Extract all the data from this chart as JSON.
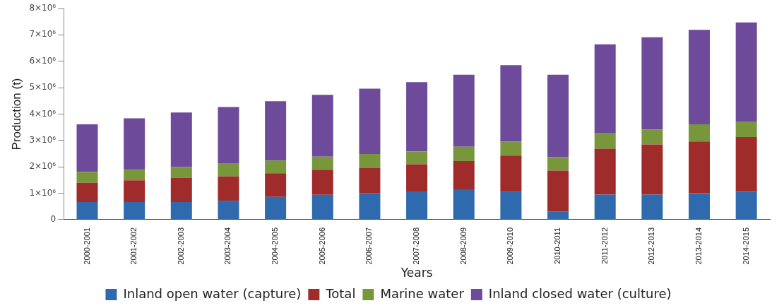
{
  "chart_data": {
    "type": "bar",
    "stacked": true,
    "xlabel": "Years",
    "ylabel": "Production (t)",
    "legend": "bottom",
    "categories": [
      "2000-2001",
      "2001-2002",
      "2002-2003",
      "2003-2004",
      "2004-2005",
      "2005-2006",
      "2006-2007",
      "2007-2008",
      "2008-2009",
      "2009-2010",
      "2010-2011",
      "2011-2012",
      "2012-2013",
      "2013-2014",
      "2014-2015"
    ],
    "ylim": [
      0,
      8000000
    ],
    "yticks": [
      0,
      {
        "value": 1000000,
        "label": "1×10⁶"
      },
      {
        "value": 2000000,
        "label": "2×10⁶"
      },
      {
        "value": 3000000,
        "label": "3×10⁶"
      },
      {
        "value": 4000000,
        "label": "4×10⁶"
      },
      {
        "value": 5000000,
        "label": "5×10⁶"
      },
      {
        "value": 6000000,
        "label": "6×10⁶"
      },
      {
        "value": 7000000,
        "label": "7×10⁶"
      },
      {
        "value": 8000000,
        "label": "8×10⁶"
      }
    ],
    "series": [
      {
        "name": "Inland open water (capture)",
        "color": "#2e6aad",
        "values": [
          670000,
          670000,
          670000,
          720000,
          860000,
          940000,
          1010000,
          1070000,
          1150000,
          1050000,
          300000,
          950000,
          950000,
          1000000,
          1060000
        ]
      },
      {
        "name": "Total",
        "color": "#a02b2b",
        "values": [
          730000,
          820000,
          920000,
          920000,
          900000,
          950000,
          940000,
          1030000,
          1070000,
          1380000,
          1560000,
          1740000,
          1900000,
          1960000,
          2070000
        ]
      },
      {
        "name": "Marine water",
        "color": "#77973a",
        "values": [
          410000,
          400000,
          410000,
          480000,
          480000,
          500000,
          540000,
          490000,
          540000,
          530000,
          510000,
          600000,
          560000,
          650000,
          570000
        ]
      },
      {
        "name": "Inland closed water (culture)",
        "color": "#6d4b9a",
        "values": [
          1800000,
          1950000,
          2060000,
          2150000,
          2250000,
          2340000,
          2470000,
          2620000,
          2730000,
          2890000,
          3120000,
          3350000,
          3500000,
          3580000,
          3770000
        ]
      }
    ]
  }
}
